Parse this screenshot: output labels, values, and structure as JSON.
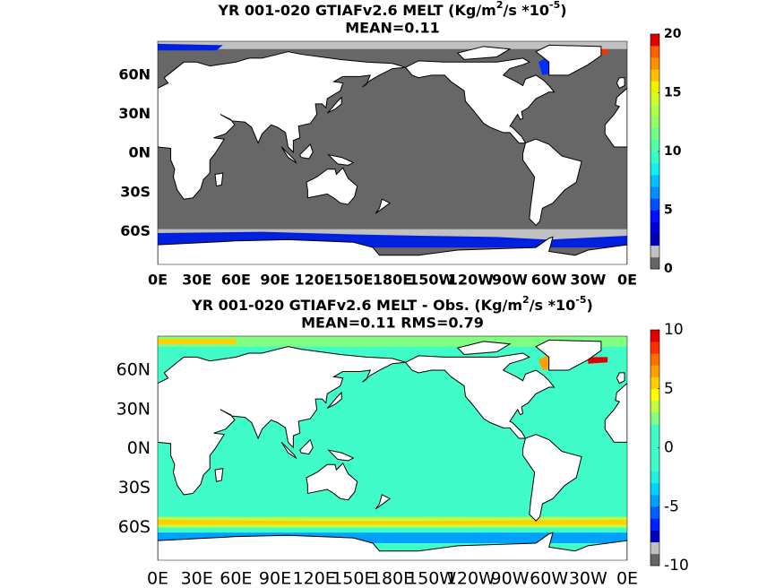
{
  "panels": [
    {
      "title": [
        "YR 001-020 GTIAFv2.6 MELT (Kg/m",
        "2",
        "/s   *10",
        "-5",
        ")"
      ],
      "subtitle": "MEAN=0.11",
      "ocean_color": "#676767",
      "lonlim": [
        0,
        360
      ],
      "latlim": [
        -85,
        86
      ],
      "lon_ticks": [
        {
          "value": 0,
          "label": "0E"
        },
        {
          "value": 30,
          "label": "30E"
        },
        {
          "value": 60,
          "label": "60E"
        },
        {
          "value": 90,
          "label": "90E"
        },
        {
          "value": 120,
          "label": "120E"
        },
        {
          "value": 150,
          "label": "150E"
        },
        {
          "value": 180,
          "label": "180E"
        },
        {
          "value": 210,
          "label": "150W"
        },
        {
          "value": 240,
          "label": "120W"
        },
        {
          "value": 270,
          "label": "90W"
        },
        {
          "value": 300,
          "label": "60W"
        },
        {
          "value": 330,
          "label": "30W"
        },
        {
          "value": 360,
          "label": "0E"
        }
      ],
      "lat_ticks": [
        {
          "value": 60,
          "label": "60N"
        },
        {
          "value": 30,
          "label": "30N"
        },
        {
          "value": 0,
          "label": "0N"
        },
        {
          "value": -30,
          "label": "30S"
        },
        {
          "value": -60,
          "label": "60S"
        }
      ],
      "colorbar": {
        "limits": [
          0,
          20
        ],
        "ticks": [
          0,
          5,
          10,
          15,
          20
        ],
        "colors": [
          "#666666",
          "#c0c0c0",
          "#0000b0",
          "#0000d8",
          "#0010ff",
          "#0050ff",
          "#0090ff",
          "#00c0ff",
          "#10f0f0",
          "#30ffc8",
          "#50ffa8",
          "#70ff88",
          "#90ff68",
          "#b0ff48",
          "#d0ff28",
          "#f0f000",
          "#ffc000",
          "#ff9000",
          "#ff6000",
          "#e00000"
        ]
      }
    },
    {
      "title": [
        "YR 001-020 GTIAFv2.6 MELT - Obs. (Kg/m",
        "2",
        "/s *10",
        "-5",
        ")"
      ],
      "subtitle": "MEAN=0.11   RMS=0.79",
      "ocean_color": "#3ffcc8",
      "lonlim": [
        0,
        360
      ],
      "latlim": [
        -85,
        86
      ],
      "lon_ticks": [
        {
          "value": 0,
          "label": "0E"
        },
        {
          "value": 30,
          "label": "30E"
        },
        {
          "value": 60,
          "label": "60E"
        },
        {
          "value": 90,
          "label": "90E"
        },
        {
          "value": 120,
          "label": "120E"
        },
        {
          "value": 150,
          "label": "150E"
        },
        {
          "value": 180,
          "label": "180E"
        },
        {
          "value": 210,
          "label": "150W"
        },
        {
          "value": 240,
          "label": "120W"
        },
        {
          "value": 270,
          "label": "90W"
        },
        {
          "value": 300,
          "label": "60W"
        },
        {
          "value": 330,
          "label": "30W"
        },
        {
          "value": 360,
          "label": "0E"
        }
      ],
      "lat_ticks": [
        {
          "value": 60,
          "label": "60N"
        },
        {
          "value": 30,
          "label": "30N"
        },
        {
          "value": 0,
          "label": "0N"
        },
        {
          "value": -30,
          "label": "30S"
        },
        {
          "value": -60,
          "label": "60S"
        }
      ],
      "colorbar": {
        "limits": [
          -10,
          10
        ],
        "ticks": [
          -10,
          -5,
          0,
          5,
          10
        ],
        "colors": [
          "#666666",
          "#c0c0c0",
          "#0000c0",
          "#0020ff",
          "#0060ff",
          "#00a0ff",
          "#00d0ff",
          "#20f0e0",
          "#3ffcc8",
          "#3ffcc8",
          "#3ffcc8",
          "#3ffcc8",
          "#80ff80",
          "#c0ff40",
          "#ffff00",
          "#ffd000",
          "#ffa000",
          "#ff7000",
          "#ff3000",
          "#e00000"
        ]
      }
    }
  ]
}
